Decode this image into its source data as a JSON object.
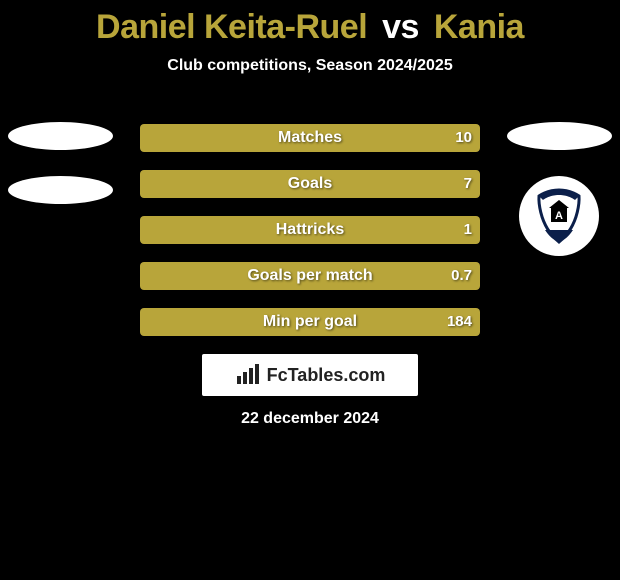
{
  "title": {
    "player1": "Daniel Keita-Ruel",
    "vs": "vs",
    "player2": "Kania",
    "color1": "#b8a53a",
    "color_vs": "#ffffff",
    "color2": "#b8a53a"
  },
  "subtitle": "Club competitions, Season 2024/2025",
  "bar_style": {
    "fill_color": "#b8a53a",
    "track_width": 340,
    "height": 28,
    "border_radius": 4,
    "label_color": "#ffffff",
    "value_color": "#ffffff",
    "fontsize": 16
  },
  "stats": [
    {
      "label": "Matches",
      "value": "10",
      "fill_pct": 100
    },
    {
      "label": "Goals",
      "value": "7",
      "fill_pct": 100
    },
    {
      "label": "Hattricks",
      "value": "1",
      "fill_pct": 100
    },
    {
      "label": "Goals per match",
      "value": "0.7",
      "fill_pct": 100
    },
    {
      "label": "Min per goal",
      "value": "184",
      "fill_pct": 100
    }
  ],
  "left_badges": {
    "ellipse_count": 2,
    "ellipse_color": "#ffffff"
  },
  "right_badges": {
    "ellipse_count": 1,
    "ellipse_color": "#ffffff",
    "club_badge": {
      "bg_color": "#ffffff",
      "accent_color": "#0b1f4a",
      "letter": "A"
    }
  },
  "branding": {
    "name": "FcTables.com",
    "icon": "bars-icon"
  },
  "date": "22 december 2024",
  "background_color": "#000000"
}
